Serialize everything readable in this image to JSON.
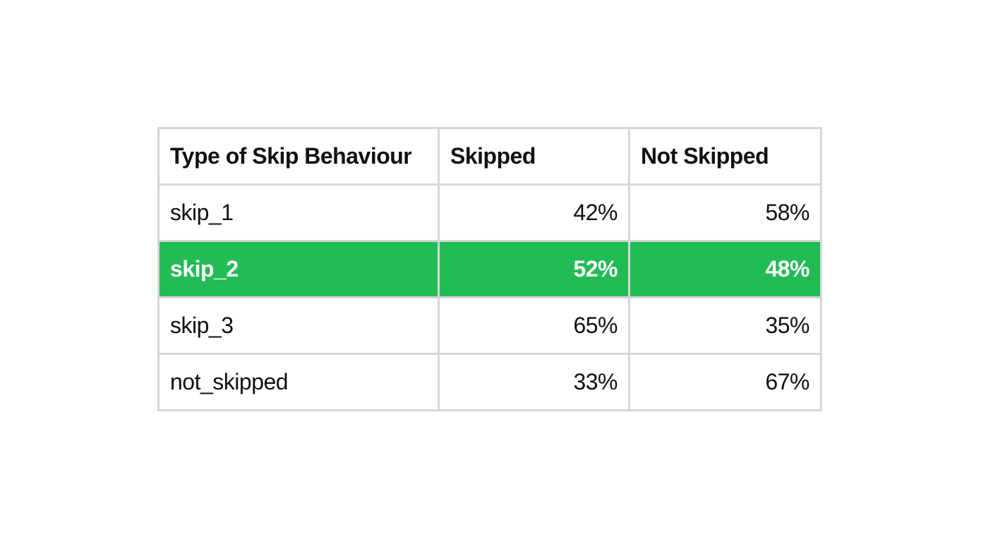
{
  "chart_data": {
    "type": "table",
    "columns": [
      "Type of Skip Behaviour",
      "Skipped",
      "Not Skipped"
    ],
    "rows": [
      {
        "type": "skip_1",
        "skipped": "42%",
        "not_skipped": "58%",
        "highlighted": false
      },
      {
        "type": "skip_2",
        "skipped": "52%",
        "not_skipped": "48%",
        "highlighted": true
      },
      {
        "type": "skip_3",
        "skipped": "65%",
        "not_skipped": "35%",
        "highlighted": false
      },
      {
        "type": "not_skipped",
        "skipped": "33%",
        "not_skipped": "67%",
        "highlighted": false
      }
    ],
    "values": {
      "skipped": [
        42,
        52,
        65,
        33
      ],
      "not_skipped": [
        58,
        48,
        35,
        67
      ]
    }
  },
  "colors": {
    "highlight_row_background": "#22bb55",
    "border": "#d6d6d6",
    "text": "#111111",
    "highlight_text": "#ffffff"
  }
}
